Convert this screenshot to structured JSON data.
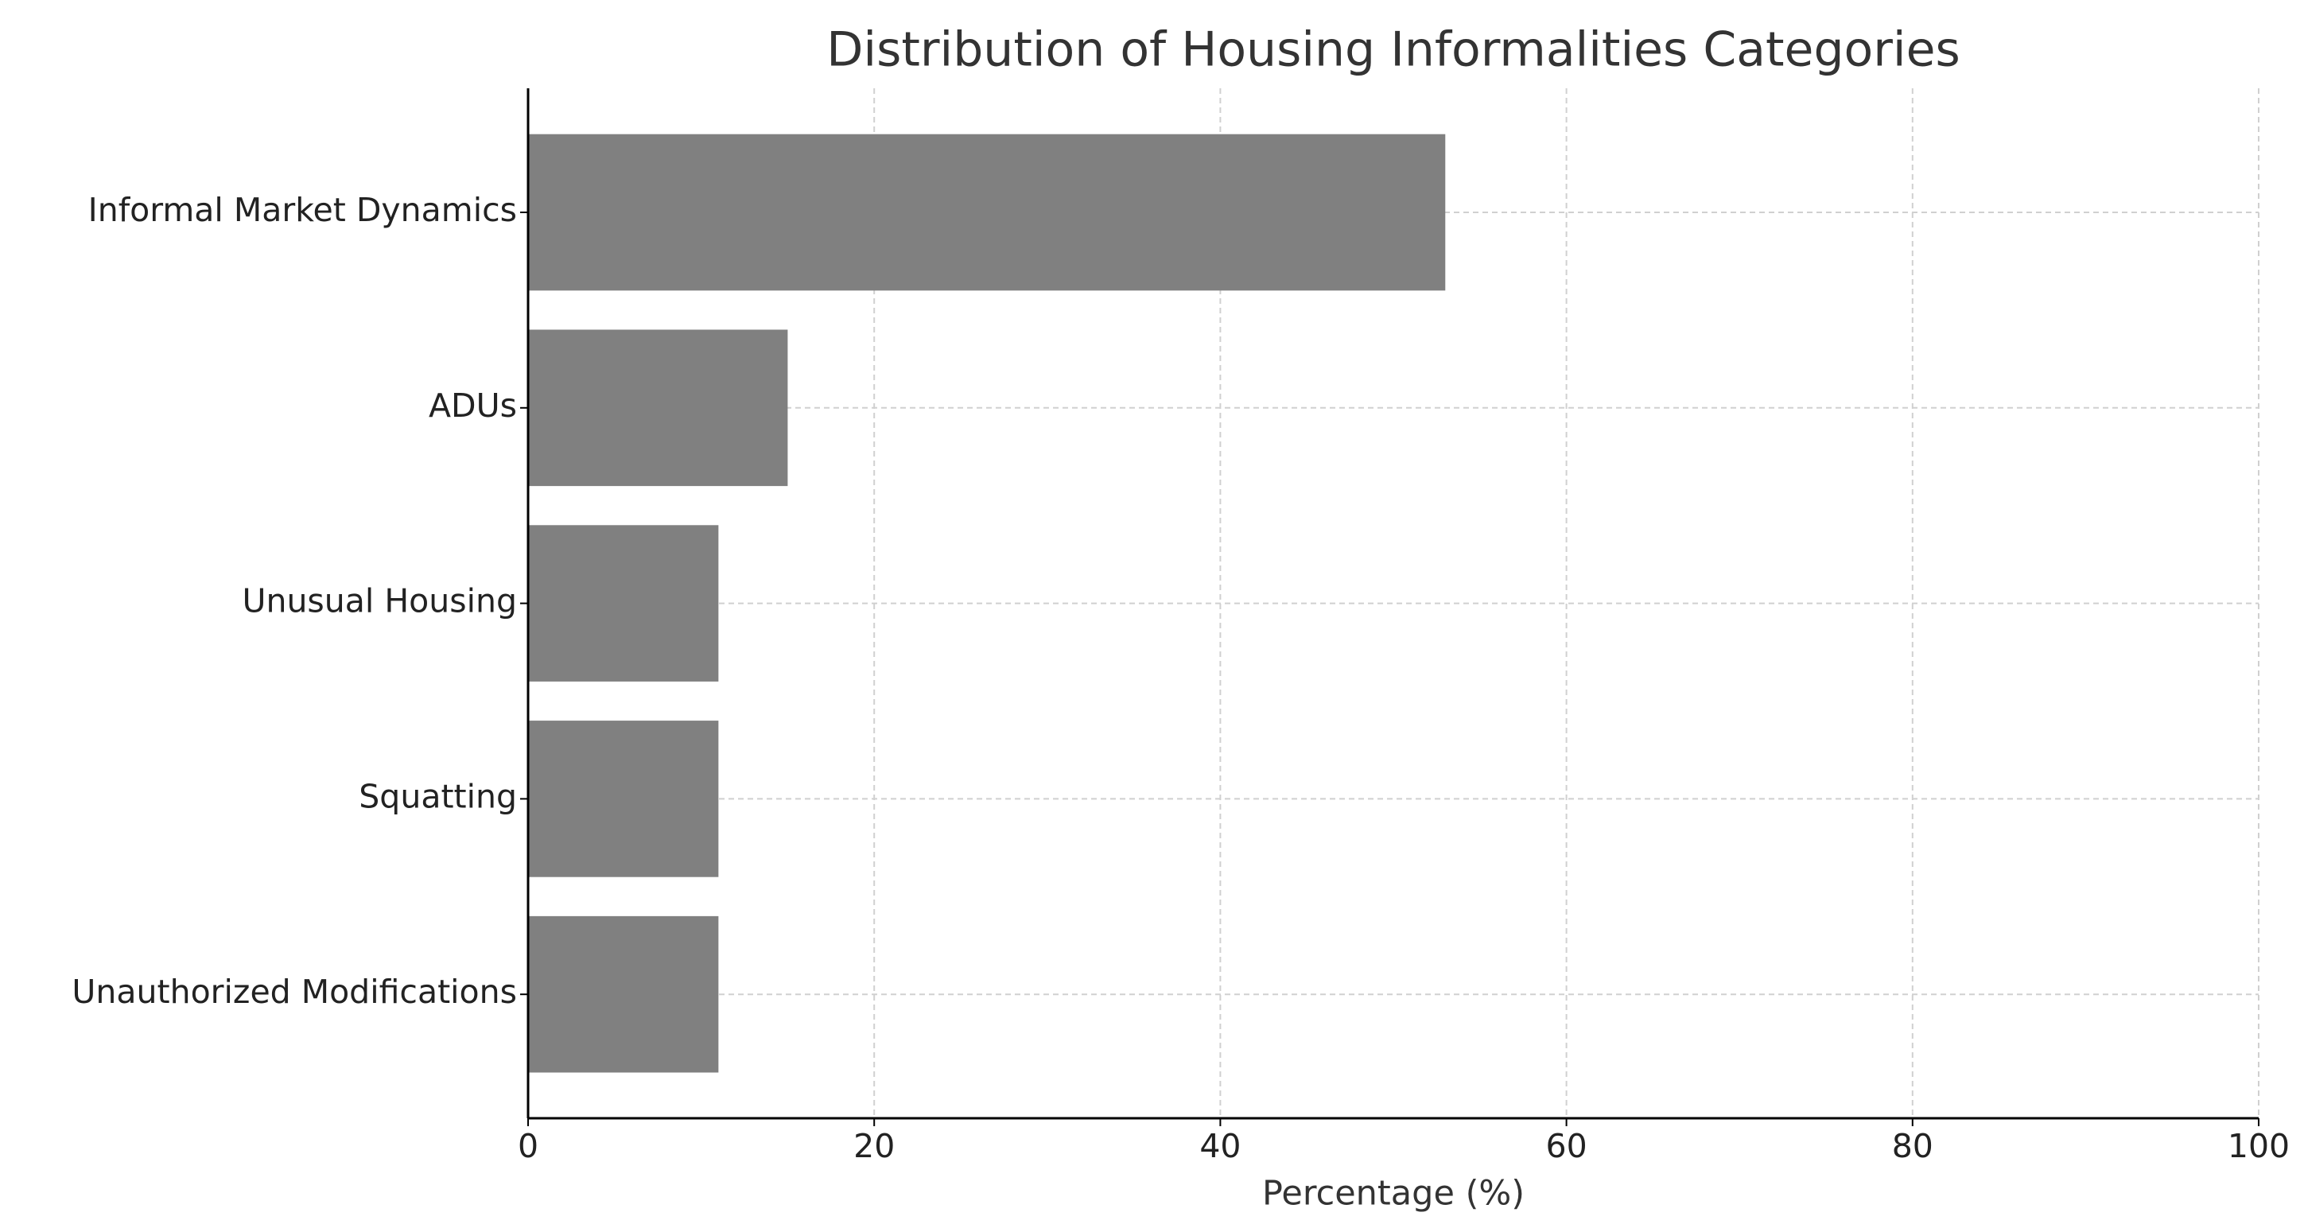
{
  "chart_data": {
    "type": "bar",
    "orientation": "horizontal",
    "title": "Distribution of Housing Informalities Categories",
    "x_label": "Percentage (%)",
    "categories": [
      "Informal Market Dynamics",
      "ADUs",
      "Unusual Housing",
      "Squatting",
      "Unauthorized Modifications"
    ],
    "values": [
      53,
      15,
      11,
      11,
      11
    ],
    "color": "#808080",
    "xlim": [
      0,
      100
    ],
    "xticks": [
      0,
      20,
      40,
      60,
      80,
      100
    ],
    "grid": true
  }
}
